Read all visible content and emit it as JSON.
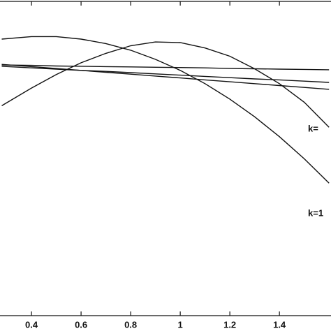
{
  "chart_data": {
    "type": "line",
    "x": [
      0.28,
      0.4,
      0.5,
      0.6,
      0.7,
      0.8,
      0.9,
      1.0,
      1.1,
      1.2,
      1.3,
      1.4,
      1.5,
      1.6
    ],
    "series": [
      {
        "color": "#111111",
        "values": [
          0.876,
          0.884,
          0.884,
          0.876,
          0.862,
          0.841,
          0.812,
          0.777,
          0.735,
          0.686,
          0.63,
          0.567,
          0.497,
          0.42
        ]
      },
      {
        "color": "#111111",
        "values": [
          0.665,
          0.721,
          0.764,
          0.801,
          0.831,
          0.855,
          0.867,
          0.865,
          0.848,
          0.822,
          0.782,
          0.735,
          0.676,
          0.597
        ]
      },
      {
        "color": "#111111",
        "values": [
          0.794,
          0.793,
          0.791,
          0.79,
          0.789,
          0.788,
          0.787,
          0.786,
          0.785,
          0.783,
          0.782,
          0.781,
          0.78,
          0.779
        ]
      },
      {
        "color": "#111111",
        "values": [
          0.79,
          0.785,
          0.781,
          0.777,
          0.774,
          0.77,
          0.766,
          0.762,
          0.758,
          0.754,
          0.75,
          0.747,
          0.743,
          0.739
        ]
      },
      {
        "color": "#111111",
        "values": [
          0.796,
          0.789,
          0.783,
          0.777,
          0.771,
          0.765,
          0.759,
          0.753,
          0.747,
          0.741,
          0.735,
          0.729,
          0.723,
          0.717
        ]
      }
    ],
    "annotations": [
      "k=",
      "k=1"
    ],
    "xlim": [
      0.273,
      1.608
    ],
    "xticks": [
      0.4,
      0.6,
      0.8,
      1,
      1.2,
      1.4
    ],
    "ylim": [
      0,
      1
    ]
  }
}
